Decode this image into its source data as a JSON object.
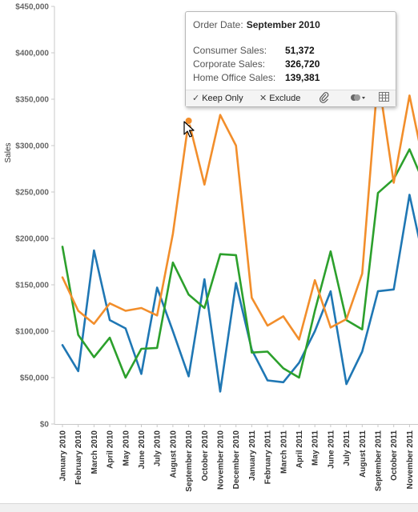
{
  "chart_data": {
    "type": "line",
    "ylabel": "Sales",
    "ylim": [
      0,
      450000
    ],
    "y_ticks": [
      "$0",
      "$50,000",
      "$100,000",
      "$150,000",
      "$200,000",
      "$250,000",
      "$300,000",
      "$350,000",
      "$400,000",
      "$450,000"
    ],
    "y_tick_values": [
      0,
      50000,
      100000,
      150000,
      200000,
      250000,
      300000,
      350000,
      400000,
      450000
    ],
    "categories": [
      "January 2010",
      "February 2010",
      "March 2010",
      "April 2010",
      "May 2010",
      "June 2010",
      "July 2010",
      "August 2010",
      "September 2010",
      "October 2010",
      "November 2010",
      "December 2010",
      "January 2011",
      "February 2011",
      "March 2011",
      "April 2011",
      "May 2011",
      "June 2011",
      "July 2011",
      "August 2011",
      "September 2011",
      "October 2011",
      "November 2011"
    ],
    "grid": false,
    "series": [
      {
        "color": "#F28E2B",
        "values": [
          158000,
          122000,
          108000,
          130000,
          122000,
          125000,
          117000,
          205000,
          326720,
          258000,
          333000,
          300000,
          136000,
          106000,
          116000,
          91000,
          155000,
          104000,
          113000,
          162000,
          375000,
          260000,
          354000
        ]
      },
      {
        "color": "#2CA02C",
        "values": [
          191000,
          96000,
          72000,
          93000,
          50000,
          81000,
          82000,
          174000,
          139381,
          125000,
          183000,
          182000,
          77000,
          78000,
          60000,
          50000,
          122000,
          186000,
          112000,
          102000,
          249000,
          264000,
          296000
        ]
      },
      {
        "color": "#1F77B4",
        "values": [
          85000,
          57000,
          187000,
          112000,
          103000,
          54000,
          147000,
          100000,
          51372,
          156000,
          35000,
          152000,
          80000,
          47000,
          45000,
          66000,
          100000,
          143000,
          43000,
          78000,
          143000,
          145000,
          247000
        ]
      }
    ],
    "trailing_values": [
      {
        "color": "#F28E2B",
        "value": 305000
      },
      {
        "color": "#2CA02C",
        "value": 272000
      },
      {
        "color": "#1F77B4",
        "value": 200000
      }
    ]
  },
  "tooltip": {
    "header_label": "Order Date:",
    "header_value": "September 2010",
    "rows": [
      {
        "label": "Consumer Sales:",
        "value": "51,372"
      },
      {
        "label": "Corporate Sales:",
        "value": "326,720"
      },
      {
        "label": "Home Office Sales:",
        "value": "139,381"
      }
    ],
    "actions": {
      "keep_only": "Keep Only",
      "exclude": "Exclude"
    }
  }
}
